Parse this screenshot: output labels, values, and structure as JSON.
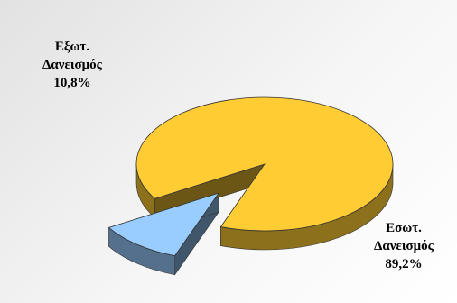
{
  "chart_data": {
    "type": "pie",
    "title": "",
    "labels": [
      "Εξωτ. Δανεισμός",
      "Εσωτ. Δανεισμός"
    ],
    "values": [
      10.8,
      89.2
    ],
    "value_labels": [
      "10,8%",
      "89,2%"
    ],
    "colors": [
      "#99ccff",
      "#ffcc33"
    ],
    "exploded": [
      "Εξωτ. Δανεισμός"
    ],
    "style": "3d",
    "legend": "none"
  },
  "labels": {
    "ext": {
      "line1": "Εξωτ.",
      "line2": "Δανεισμός",
      "pct": "10,8%"
    },
    "int": {
      "line1": "Εσωτ.",
      "line2": "Δανεισμός",
      "pct": "89,2%"
    }
  }
}
